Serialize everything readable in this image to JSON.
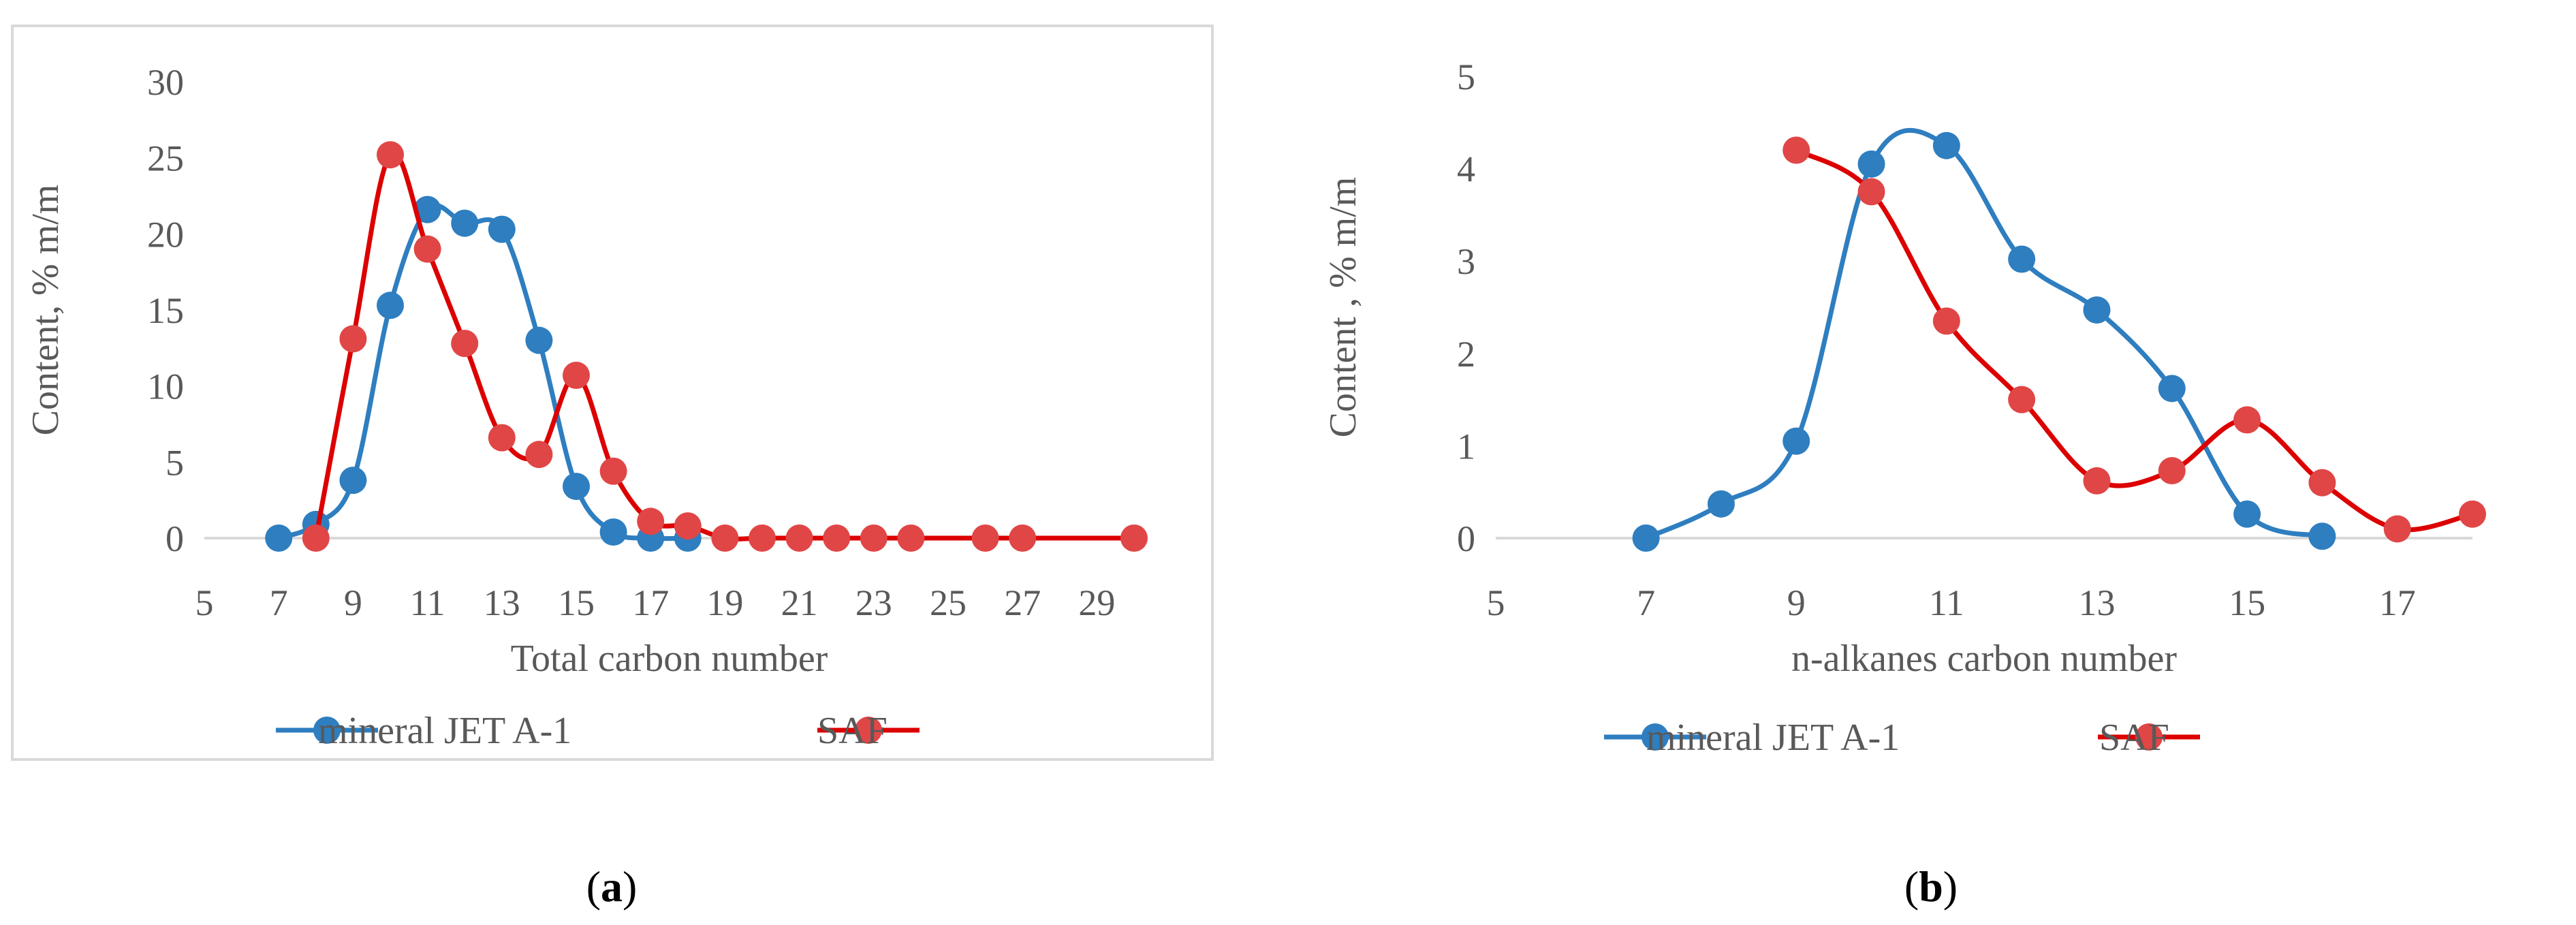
{
  "chart_data": [
    {
      "type": "line",
      "panel_label": "a",
      "title": "",
      "xlabel": "Total carbon number",
      "ylabel": "Content, % m/m",
      "xlim": [
        5,
        30
      ],
      "ylim": [
        0,
        30
      ],
      "x_ticks": [
        5,
        7,
        9,
        11,
        13,
        15,
        17,
        19,
        21,
        23,
        25,
        27,
        29
      ],
      "y_ticks": [
        0,
        5,
        10,
        15,
        20,
        25,
        30
      ],
      "grid": false,
      "legend_position": "bottom",
      "series": [
        {
          "name": "mineral JET A-1",
          "color": "#2E7EC0",
          "x": [
            7,
            8,
            9,
            10,
            11,
            12,
            13,
            14,
            15,
            16,
            17,
            18
          ],
          "y": [
            0,
            0.9,
            3.8,
            15.3,
            21.6,
            20.7,
            20.3,
            13.0,
            3.4,
            0.4,
            0,
            0
          ]
        },
        {
          "name": "SAF",
          "color": "#DC0000",
          "marker_color": "#E04646",
          "x": [
            8,
            9,
            10,
            11,
            12,
            13,
            14,
            15,
            16,
            17,
            18,
            19,
            20,
            21,
            22,
            23,
            24,
            26,
            27,
            30
          ],
          "y": [
            0,
            13.1,
            25.2,
            19.0,
            12.8,
            6.6,
            5.5,
            10.7,
            4.4,
            1.1,
            0.8,
            0,
            0,
            0,
            0,
            0,
            0,
            0,
            0,
            0
          ]
        }
      ]
    },
    {
      "type": "line",
      "panel_label": "b",
      "title": "",
      "xlabel": "n-alkanes carbon number",
      "ylabel": "Content , % m/m",
      "xlim": [
        5,
        18
      ],
      "ylim": [
        0,
        5
      ],
      "x_ticks": [
        5,
        7,
        9,
        11,
        13,
        15,
        17
      ],
      "y_ticks": [
        0,
        1,
        2,
        3,
        4,
        5
      ],
      "grid": false,
      "legend_position": "bottom",
      "series": [
        {
          "name": "mineral JET A-1",
          "color": "#2E7EC0",
          "x": [
            7,
            8,
            9,
            10,
            11,
            12,
            13,
            14,
            15,
            16
          ],
          "y": [
            0,
            0.37,
            1.05,
            4.05,
            4.25,
            3.02,
            2.47,
            1.62,
            0.26,
            0.02
          ]
        },
        {
          "name": "SAF",
          "color": "#DC0000",
          "marker_color": "#E04646",
          "x": [
            9,
            10,
            11,
            12,
            13,
            14,
            15,
            16,
            17,
            18
          ],
          "y": [
            4.2,
            3.75,
            2.35,
            1.5,
            0.62,
            0.73,
            1.28,
            0.6,
            0.1,
            0.26
          ]
        }
      ]
    }
  ]
}
